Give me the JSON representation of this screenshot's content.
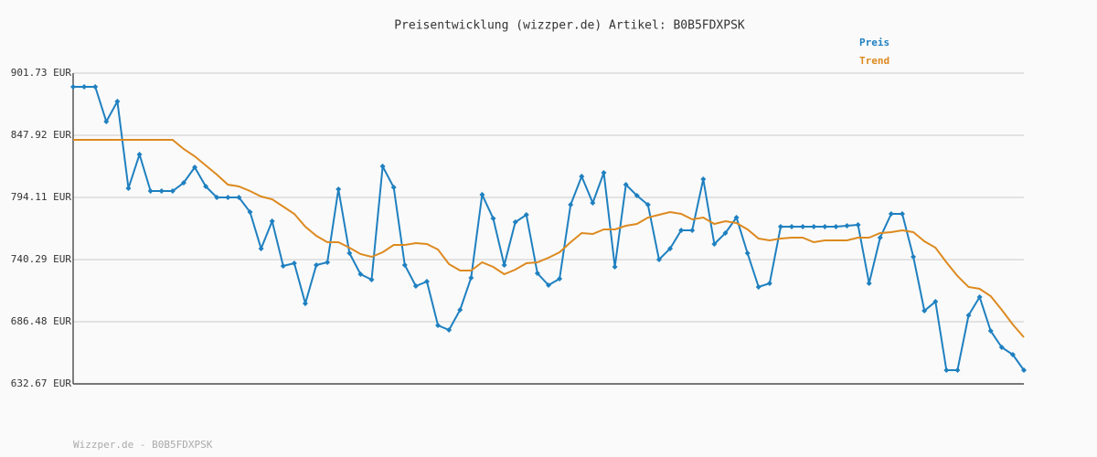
{
  "chart_data": {
    "type": "line",
    "title": "Preisentwicklung (wizzper.de) Artikel: B0B5FDXPSK",
    "footer": "Wizzper.de - B0B5FDXPSK",
    "legend": "top-right",
    "grid": true,
    "ylim": [
      632.67,
      901.73
    ],
    "yticks": [
      {
        "value": 632.67,
        "label": "632.67 EUR"
      },
      {
        "value": 686.48,
        "label": "686.48 EUR"
      },
      {
        "value": 740.29,
        "label": "740.29 EUR"
      },
      {
        "value": 794.11,
        "label": "794.11 EUR"
      },
      {
        "value": 847.92,
        "label": "847.92 EUR"
      },
      {
        "value": 901.73,
        "label": "901.73 EUR"
      }
    ],
    "series": [
      {
        "name": "Preis",
        "color": "#1f80c0",
        "markers": true,
        "values": [
          889.86,
          889.86,
          889.86,
          859.79,
          877.2,
          802.03,
          831.3,
          799.65,
          799.65,
          799.65,
          806.77,
          820.23,
          803.61,
          794.11,
          794.11,
          794.11,
          781.45,
          749.8,
          773.54,
          734.77,
          737.14,
          702.32,
          735.56,
          737.93,
          801.23,
          745.84,
          727.64,
          722.9,
          821.02,
          802.82,
          735.56,
          717.36,
          721.31,
          683.33,
          679.37,
          696.78,
          724.48,
          796.49,
          775.91,
          735.56,
          772.75,
          779.08,
          728.44,
          718.15,
          723.69,
          787.78,
          812.31,
          789.37,
          815.48,
          733.97,
          805.19,
          795.7,
          787.78,
          740.3,
          749.8,
          765.63,
          765.63,
          809.94,
          753.76,
          763.25,
          776.7,
          745.84,
          716.57,
          719.73,
          768.79,
          768.79,
          768.79,
          768.79,
          768.79,
          768.79,
          769.58,
          770.37,
          719.73,
          759.3,
          779.87,
          779.87,
          742.68,
          695.99,
          703.9,
          644.56,
          644.56,
          692.04,
          707.86,
          678.58,
          664.34,
          658.01,
          644.56
        ]
      },
      {
        "name": "Trend",
        "color": "#dd8a20",
        "markers": false,
        "values": [
          843.97,
          843.97,
          843.97,
          843.97,
          843.97,
          843.97,
          843.97,
          843.97,
          843.97,
          843.97,
          836.05,
          829.72,
          821.81,
          813.9,
          805.19,
          803.61,
          799.65,
          794.9,
          792.53,
          786.2,
          779.87,
          768.79,
          760.88,
          755.34,
          755.34,
          750.59,
          745.05,
          742.68,
          746.63,
          752.97,
          752.97,
          754.55,
          753.76,
          749.01,
          736.35,
          730.81,
          730.81,
          737.93,
          733.97,
          727.64,
          731.6,
          737.14,
          737.93,
          741.89,
          746.63,
          755.34,
          763.25,
          762.46,
          766.42,
          766.42,
          769.58,
          771.17,
          776.7,
          779.08,
          781.45,
          779.87,
          775.12,
          776.7,
          771.17,
          773.54,
          771.96,
          766.42,
          758.51,
          756.92,
          758.51,
          759.3,
          759.3,
          755.34,
          756.92,
          756.92,
          756.92,
          759.3,
          759.3,
          763.25,
          764.04,
          765.63,
          764.04,
          756.13,
          750.59,
          737.93,
          726.06,
          716.57,
          714.98,
          708.65,
          696.78,
          684.12,
          673.04
        ]
      }
    ]
  }
}
